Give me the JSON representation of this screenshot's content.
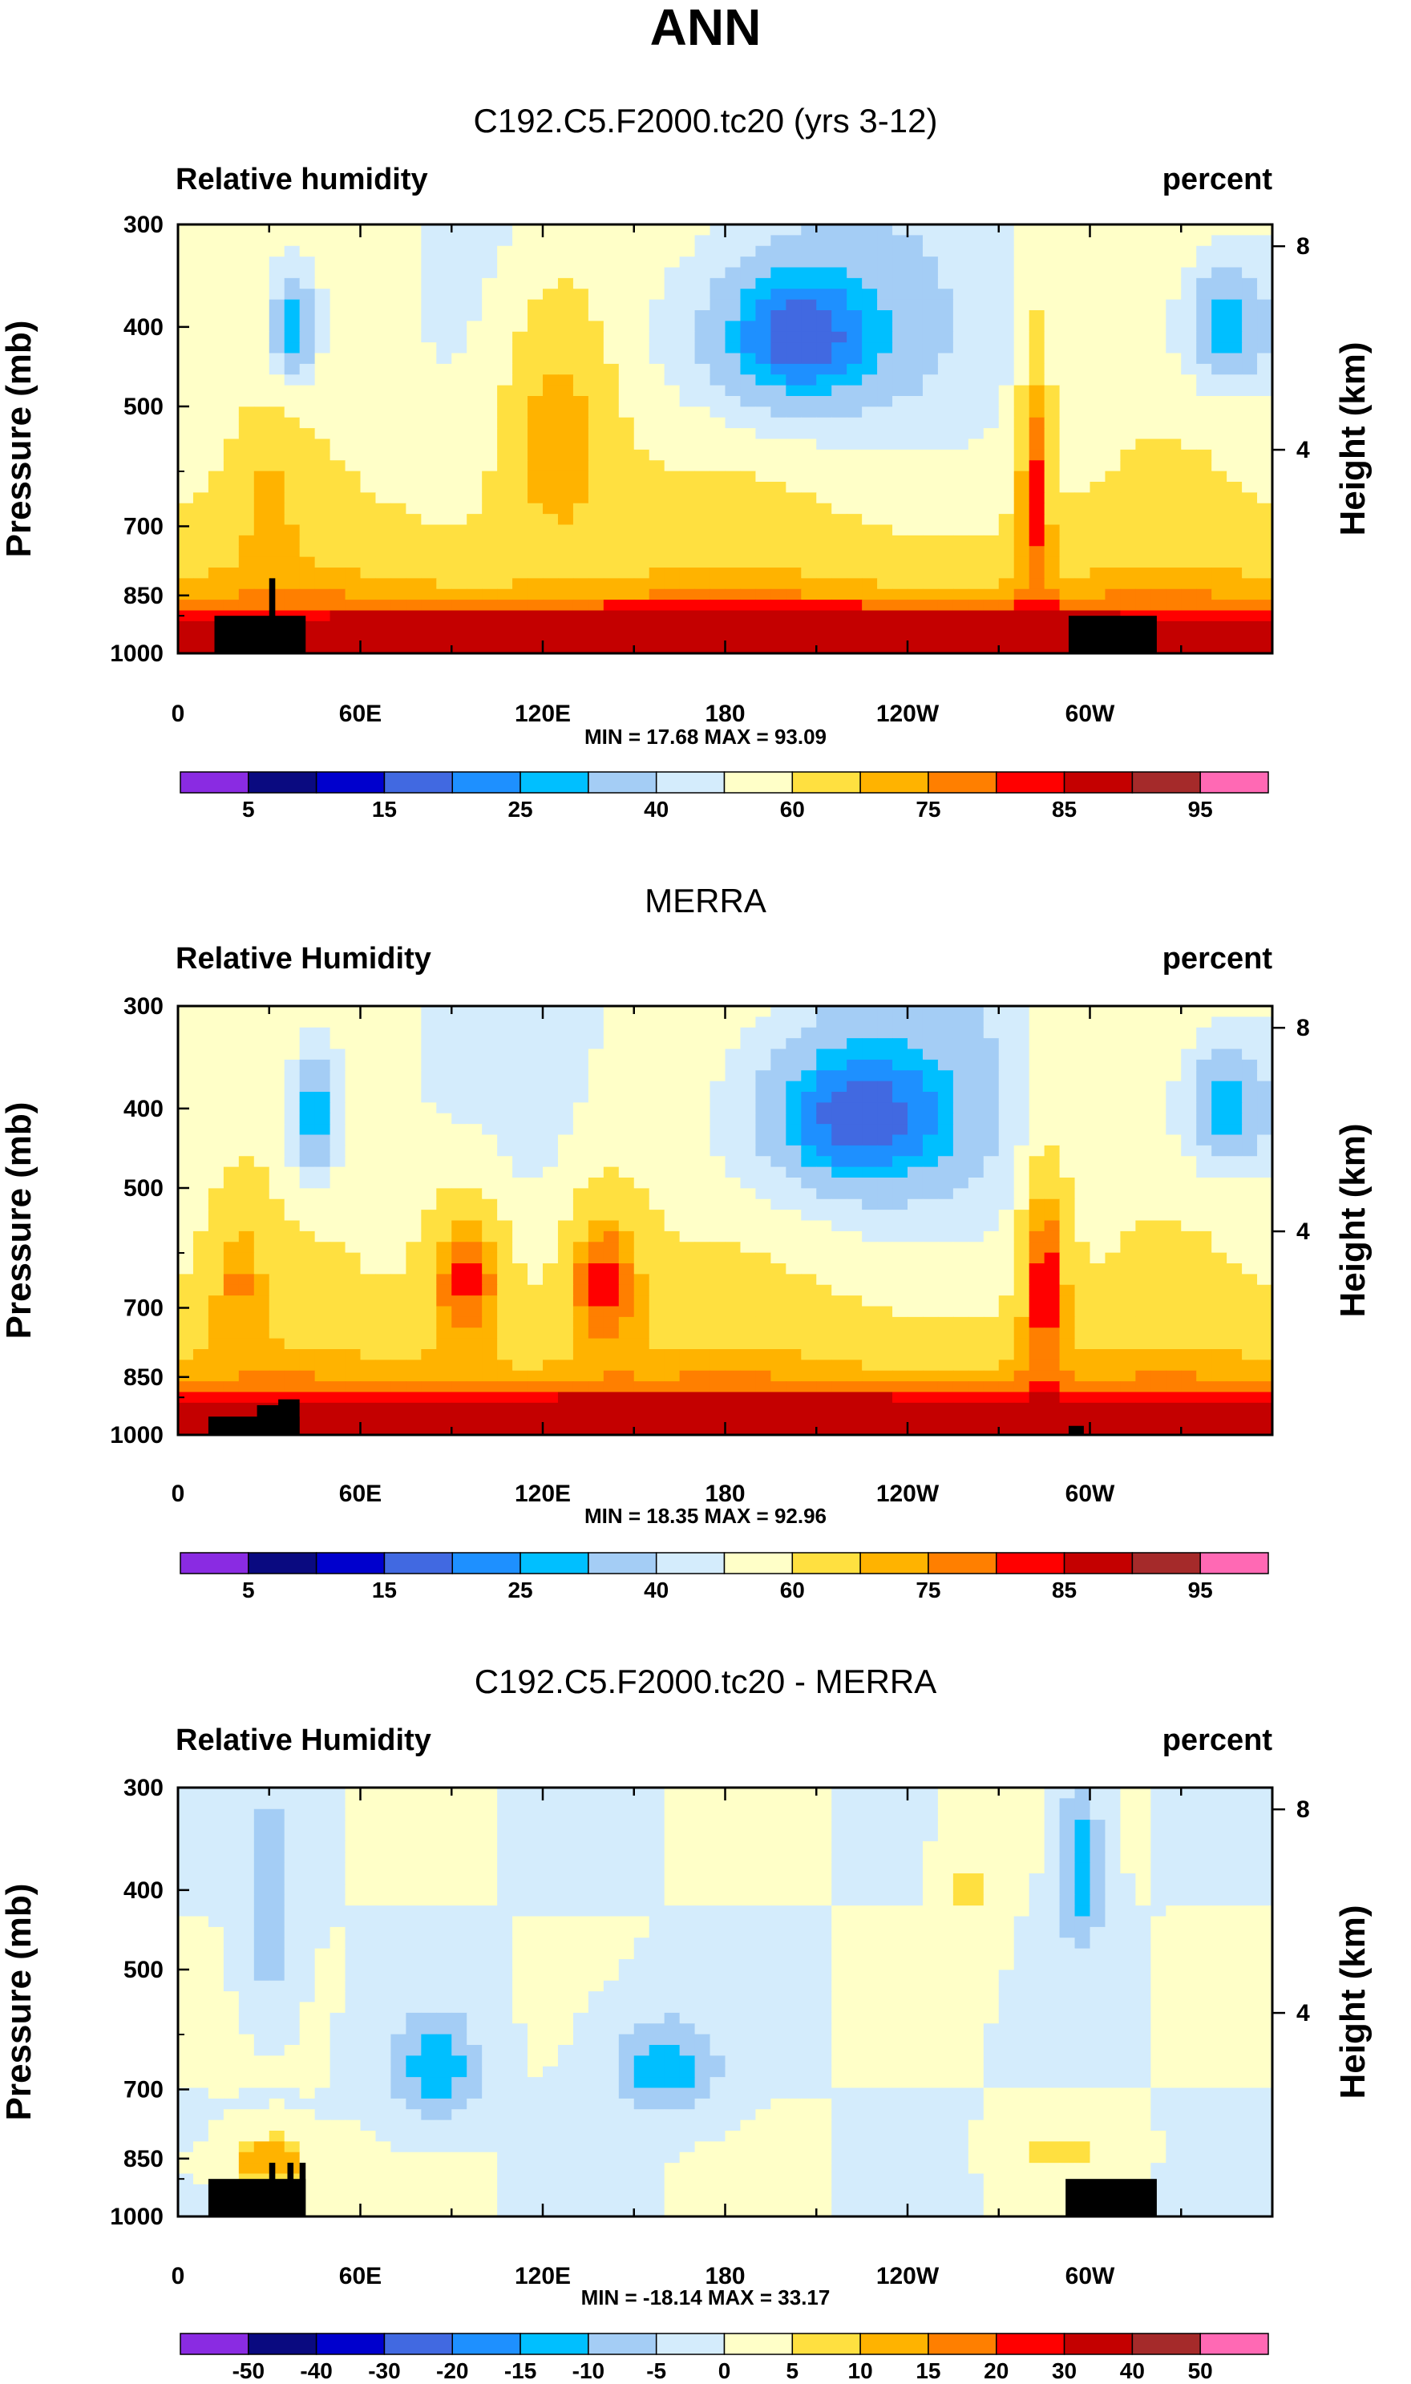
{
  "figure_title": "ANN",
  "chart_data": [
    {
      "type": "contour",
      "title": "C192.C5.F2000.tc20 (yrs 3-12)",
      "left_label": "Relative humidity",
      "right_label": "percent",
      "ylabel": "Pressure (mb)",
      "ylabel_right": "Height (km)",
      "y_ticks": [
        "300",
        "400",
        "500",
        "700",
        "850",
        "1000"
      ],
      "y_tick_values": [
        300,
        400,
        500,
        700,
        850,
        1000
      ],
      "ylim": [
        1000,
        300
      ],
      "y_right_ticks": [
        "8",
        "4"
      ],
      "y_right_tick_values": [
        8,
        4
      ],
      "x_ticks": [
        "0",
        "60E",
        "120E",
        "180",
        "120W",
        "60W"
      ],
      "x_tick_values": [
        0,
        60,
        120,
        180,
        240,
        300
      ],
      "xlim": [
        0,
        360
      ],
      "stats": "MIN =  17.68  MAX =  93.09",
      "colorbar_labels": [
        "5",
        "15",
        "25",
        "40",
        "60",
        "75",
        "85",
        "95"
      ],
      "colorbar_levels": [
        5,
        10,
        15,
        20,
        25,
        30,
        40,
        50,
        60,
        70,
        75,
        80,
        85,
        90,
        95
      ],
      "features": [
        {
          "lon": 38,
          "p": 400,
          "value": 25,
          "sx": 9,
          "sp": 70
        },
        {
          "lon": 205,
          "p": 410,
          "value": 16,
          "sx": 38,
          "sp": 110
        },
        {
          "lon": 345,
          "p": 400,
          "value": 25,
          "sx": 16,
          "sp": 75
        },
        {
          "lon": 125,
          "p": 550,
          "value": 75,
          "sx": 22,
          "sp": 230
        },
        {
          "lon": 282,
          "p": 650,
          "value": 82,
          "sx": 6,
          "sp": 250
        },
        {
          "lon": 30,
          "p": 680,
          "value": 74,
          "sx": 10,
          "sp": 140
        },
        {
          "lon": 180,
          "p": 920,
          "value": 90,
          "sx": 200,
          "sp": 45
        }
      ]
    },
    {
      "type": "contour",
      "title": "MERRA",
      "left_label": "Relative Humidity",
      "right_label": "percent",
      "ylabel": "Pressure (mb)",
      "ylabel_right": "Height (km)",
      "y_ticks": [
        "300",
        "400",
        "500",
        "700",
        "850",
        "1000"
      ],
      "y_tick_values": [
        300,
        400,
        500,
        700,
        850,
        1000
      ],
      "ylim": [
        1000,
        300
      ],
      "y_right_ticks": [
        "8",
        "4"
      ],
      "y_right_tick_values": [
        8,
        4
      ],
      "x_ticks": [
        "0",
        "60E",
        "120E",
        "180",
        "120W",
        "60W"
      ],
      "x_tick_values": [
        0,
        60,
        120,
        180,
        240,
        300
      ],
      "xlim": [
        0,
        360
      ],
      "stats": "MIN =  18.35  MAX =  92.96",
      "colorbar_labels": [
        "5",
        "15",
        "25",
        "40",
        "60",
        "75",
        "85",
        "95"
      ],
      "colorbar_levels": [
        5,
        10,
        15,
        20,
        25,
        30,
        40,
        50,
        60,
        70,
        75,
        80,
        85,
        90,
        95
      ],
      "features": [
        {
          "lon": 45,
          "p": 410,
          "value": 25,
          "sx": 9,
          "sp": 80
        },
        {
          "lon": 225,
          "p": 410,
          "value": 16,
          "sx": 40,
          "sp": 110
        },
        {
          "lon": 345,
          "p": 400,
          "value": 25,
          "sx": 16,
          "sp": 75
        },
        {
          "lon": 95,
          "p": 650,
          "value": 82,
          "sx": 14,
          "sp": 150
        },
        {
          "lon": 140,
          "p": 650,
          "value": 82,
          "sx": 14,
          "sp": 150
        },
        {
          "lon": 285,
          "p": 660,
          "value": 84,
          "sx": 8,
          "sp": 220
        },
        {
          "lon": 20,
          "p": 660,
          "value": 76,
          "sx": 10,
          "sp": 140
        },
        {
          "lon": 180,
          "p": 930,
          "value": 90,
          "sx": 200,
          "sp": 45
        }
      ]
    },
    {
      "type": "contour",
      "title": "C192.C5.F2000.tc20 - MERRA",
      "left_label": "Relative Humidity",
      "right_label": "percent",
      "ylabel": "Pressure (mb)",
      "ylabel_right": "Height (km)",
      "y_ticks": [
        "300",
        "400",
        "500",
        "700",
        "850",
        "1000"
      ],
      "y_tick_values": [
        300,
        400,
        500,
        700,
        850,
        1000
      ],
      "ylim": [
        1000,
        300
      ],
      "y_right_ticks": [
        "8",
        "4"
      ],
      "y_right_tick_values": [
        8,
        4
      ],
      "x_ticks": [
        "0",
        "60E",
        "120E",
        "180",
        "120W",
        "60W"
      ],
      "x_tick_values": [
        0,
        60,
        120,
        180,
        240,
        300
      ],
      "xlim": [
        0,
        360
      ],
      "stats": "MIN = -18.14  MAX =  33.17",
      "colorbar_labels": [
        "-50",
        "-40",
        "-30",
        "-20",
        "-15",
        "-10",
        "-5",
        "0",
        "5",
        "10",
        "15",
        "20",
        "30",
        "40",
        "50"
      ],
      "colorbar_levels": [
        -50,
        -40,
        -30,
        -20,
        -15,
        -10,
        -5,
        0,
        5,
        10,
        15,
        20,
        30,
        40,
        50
      ],
      "features": [
        {
          "lon": 85,
          "p": 660,
          "value": -14,
          "sx": 14,
          "sp": 100
        },
        {
          "lon": 160,
          "p": 660,
          "value": -13,
          "sx": 18,
          "sp": 90
        },
        {
          "lon": 297,
          "p": 380,
          "value": -14,
          "sx": 7,
          "sp": 90
        },
        {
          "lon": 30,
          "p": 420,
          "value": -11,
          "sx": 8,
          "sp": 120
        },
        {
          "lon": 30,
          "p": 860,
          "value": 16,
          "sx": 12,
          "sp": 60
        },
        {
          "lon": 290,
          "p": 830,
          "value": 7,
          "sx": 16,
          "sp": 50
        },
        {
          "lon": 260,
          "p": 400,
          "value": 6,
          "sx": 8,
          "sp": 80
        }
      ]
    }
  ]
}
